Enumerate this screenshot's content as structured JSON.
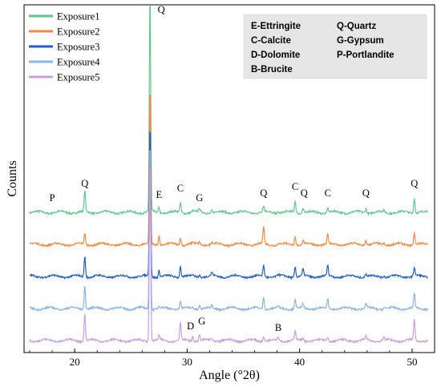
{
  "chart_data": {
    "type": "line",
    "xlabel": "Angle (°2θ)",
    "ylabel": "Counts",
    "xlim": [
      15.5,
      52
    ],
    "xticks": [
      "20",
      "30",
      "40",
      "50"
    ],
    "legend_position": "top-left",
    "series": [
      {
        "name": "Exposure1",
        "color": "#5dc98d",
        "offset": 4
      },
      {
        "name": "Exposure2",
        "color": "#f48a3e",
        "offset": 3
      },
      {
        "name": "Exposure3",
        "color": "#1f5fc9",
        "offset": 2
      },
      {
        "name": "Exposure4",
        "color": "#8ab4e8",
        "offset": 1
      },
      {
        "name": "Exposure5",
        "color": "#c79ee0",
        "offset": 0
      }
    ],
    "peaks": [
      {
        "angle": 20.9,
        "h": [
          26,
          14,
          26,
          30,
          34
        ]
      },
      {
        "angle": 26.7,
        "h": [
          270,
          195,
          190,
          210,
          225
        ]
      },
      {
        "angle": 27.5,
        "h": [
          7,
          12,
          8,
          3,
          5
        ]
      },
      {
        "angle": 29.4,
        "h": [
          12,
          9,
          14,
          10,
          22
        ]
      },
      {
        "angle": 30.5,
        "h": [
          2,
          2,
          2,
          2,
          6
        ]
      },
      {
        "angle": 31.1,
        "h": [
          4,
          3,
          3,
          5,
          7
        ]
      },
      {
        "angle": 32.2,
        "h": [
          3,
          3,
          4,
          3,
          3
        ]
      },
      {
        "angle": 36.8,
        "h": [
          7,
          22,
          14,
          16,
          6
        ]
      },
      {
        "angle": 38.1,
        "h": [
          2,
          2,
          2,
          2,
          4
        ]
      },
      {
        "angle": 39.6,
        "h": [
          15,
          10,
          13,
          11,
          12
        ]
      },
      {
        "angle": 40.3,
        "h": [
          6,
          5,
          8,
          5,
          4
        ]
      },
      {
        "angle": 42.5,
        "h": [
          6,
          12,
          13,
          12,
          5
        ]
      },
      {
        "angle": 45.9,
        "h": [
          6,
          6,
          4,
          6,
          5
        ]
      },
      {
        "angle": 47.5,
        "h": [
          2,
          2,
          2,
          2,
          4
        ]
      },
      {
        "angle": 50.2,
        "h": [
          19,
          15,
          11,
          18,
          26
        ]
      }
    ],
    "annotations": [
      {
        "text": "P",
        "angle": 18.0,
        "series": 0,
        "above": 10
      },
      {
        "text": "Q",
        "angle": 20.9,
        "series": 0,
        "above": 28
      },
      {
        "text": "Q",
        "angle": 27.7,
        "series": 0,
        "above": 245
      },
      {
        "text": "E",
        "angle": 27.5,
        "series": 0,
        "above": 14
      },
      {
        "text": "C",
        "angle": 29.4,
        "series": 0,
        "above": 22
      },
      {
        "text": "G",
        "angle": 31.1,
        "series": 0,
        "above": 10
      },
      {
        "text": "Q",
        "angle": 36.8,
        "series": 0,
        "above": 16
      },
      {
        "text": "C",
        "angle": 39.6,
        "series": 0,
        "above": 24
      },
      {
        "text": "Q",
        "angle": 40.4,
        "series": 0,
        "above": 16
      },
      {
        "text": "C",
        "angle": 42.5,
        "series": 0,
        "above": 16
      },
      {
        "text": "Q",
        "angle": 45.9,
        "series": 0,
        "above": 16
      },
      {
        "text": "Q",
        "angle": 50.2,
        "series": 0,
        "above": 28
      },
      {
        "text": "D",
        "angle": 30.3,
        "series": 4,
        "above": 10
      },
      {
        "text": "G",
        "angle": 31.3,
        "series": 4,
        "above": 16
      },
      {
        "text": "B",
        "angle": 38.1,
        "series": 4,
        "above": 8
      }
    ],
    "phase_key": [
      [
        "E-Ettringite",
        "Q-Quartz"
      ],
      [
        "C-Calcite",
        "G-Gypsum"
      ],
      [
        "D-Dolomite",
        "P-Portlandite"
      ],
      [
        "B-Brucite",
        ""
      ]
    ]
  }
}
